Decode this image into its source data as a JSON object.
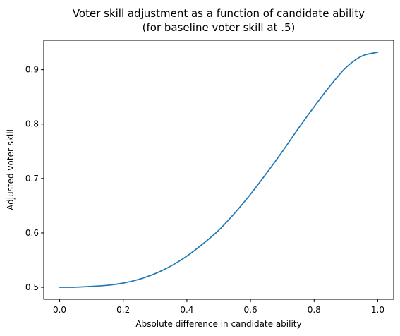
{
  "chart_data": {
    "type": "line",
    "title": "Voter skill adjustment as a function of candidate ability",
    "subtitle": "(for baseline voter skill at .5)",
    "xlabel": "Absolute difference in candidate ability",
    "ylabel": "Adjusted voter skill",
    "xlim": [
      -0.05,
      1.05
    ],
    "ylim": [
      0.478,
      0.954
    ],
    "xticks": [
      0.0,
      0.2,
      0.4,
      0.6,
      0.8,
      1.0
    ],
    "xtick_labels": [
      "0.0",
      "0.2",
      "0.4",
      "0.6",
      "0.8",
      "1.0"
    ],
    "yticks": [
      0.5,
      0.6,
      0.7,
      0.8,
      0.9
    ],
    "ytick_labels": [
      "0.5",
      "0.6",
      "0.7",
      "0.8",
      "0.9"
    ],
    "grid": false,
    "legend": "none",
    "series": [
      {
        "color": "#1f77b4",
        "x": [
          0.0,
          0.05,
          0.1,
          0.15,
          0.2,
          0.25,
          0.3,
          0.35,
          0.4,
          0.45,
          0.5,
          0.55,
          0.6,
          0.65,
          0.7,
          0.75,
          0.8,
          0.85,
          0.9,
          0.95,
          1.0
        ],
        "y": [
          0.5,
          0.5002,
          0.5017,
          0.5037,
          0.5078,
          0.5148,
          0.5251,
          0.5392,
          0.5573,
          0.5797,
          0.6048,
          0.6362,
          0.6711,
          0.7093,
          0.7494,
          0.7915,
          0.8318,
          0.87,
          0.9037,
          0.9248,
          0.932
        ]
      }
    ]
  }
}
